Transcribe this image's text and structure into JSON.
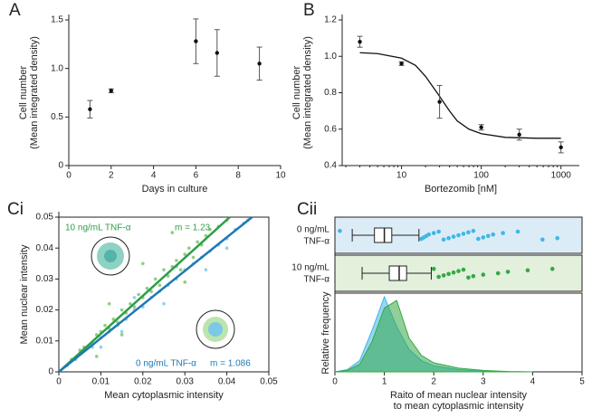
{
  "chart_data": [
    {
      "type": "errorbar",
      "panel": "A",
      "xlabel": "Days in culture",
      "ylabel": [
        "Cell number",
        "(Mean integrated density)"
      ],
      "x": [
        1,
        2,
        6,
        7,
        9
      ],
      "values": [
        0.58,
        0.77,
        1.28,
        1.16,
        1.05
      ],
      "errors": [
        0.09,
        0.02,
        0.23,
        0.24,
        0.17
      ],
      "color": "#111111",
      "xlim": [
        0,
        10
      ],
      "xticks": [
        0,
        2,
        4,
        6,
        8,
        10
      ],
      "ylim": [
        0,
        1.5
      ],
      "yticks": [
        0,
        0.5,
        {
          "value": 1,
          "label": "1.0"
        },
        1.5
      ]
    },
    {
      "type": "errorbar",
      "panel": "B",
      "xlabel": "Bortezomib [nM]",
      "ylabel": [
        "Cell number",
        "(Mean integrated density)"
      ],
      "log_x": true,
      "x": [
        3,
        10,
        30,
        100,
        300,
        1000
      ],
      "values": [
        1.08,
        0.96,
        0.75,
        0.61,
        0.57,
        0.5
      ],
      "errors": [
        0.03,
        0.01,
        0.09,
        0.015,
        0.03,
        0.03
      ],
      "color": "#111111",
      "fit": {
        "x": [
          3,
          5,
          10,
          15,
          20,
          25,
          30,
          40,
          50,
          70,
          100,
          200,
          500,
          1000
        ],
        "values": [
          1.02,
          1.015,
          0.99,
          0.95,
          0.89,
          0.83,
          0.78,
          0.7,
          0.645,
          0.6,
          0.575,
          0.555,
          0.55,
          0.55
        ]
      },
      "xlim": [
        1.8,
        1700
      ],
      "xticks": [
        10,
        100,
        1000
      ],
      "ylim": [
        0.4,
        1.2
      ],
      "yticks": [
        0.4,
        0.6,
        0.8,
        {
          "value": 1,
          "label": "1.0"
        },
        1.2
      ]
    },
    {
      "type": "scatter",
      "panel": "Ci",
      "xlabel": "Mean cytoplasmic intensity",
      "ylabel": [
        "Mean nuclear intensity"
      ],
      "series": [
        {
          "name": "10 ng/mL TNF-α",
          "slope_label": "m = 1.23",
          "color": "#2e9e48",
          "point_color": "#7cc46a",
          "x": [
            0.003,
            0.005,
            0.006,
            0.008,
            0.009,
            0.01,
            0.011,
            0.012,
            0.013,
            0.014,
            0.015,
            0.016,
            0.017,
            0.018,
            0.019,
            0.02,
            0.021,
            0.022,
            0.023,
            0.024,
            0.025,
            0.026,
            0.027,
            0.028,
            0.029,
            0.03,
            0.031,
            0.032,
            0.033,
            0.034,
            0.035,
            0.036,
            0.038,
            0.04,
            0.012,
            0.02,
            0.027,
            0.009,
            0.015,
            0.03
          ],
          "values": [
            0.004,
            0.007,
            0.008,
            0.009,
            0.012,
            0.013,
            0.015,
            0.014,
            0.017,
            0.016,
            0.02,
            0.019,
            0.022,
            0.021,
            0.025,
            0.024,
            0.027,
            0.026,
            0.03,
            0.028,
            0.033,
            0.031,
            0.034,
            0.036,
            0.033,
            0.038,
            0.04,
            0.037,
            0.042,
            0.041,
            0.044,
            0.046,
            0.047,
            0.049,
            0.022,
            0.035,
            0.045,
            0.005,
            0.012,
            0.029
          ],
          "fit": {
            "x": [
              0,
              0.0407
            ],
            "values": [
              0,
              0.05
            ]
          }
        },
        {
          "name": "0 ng/mL TNF-α",
          "slope_label": "m = 1.086",
          "color": "#1f78b4",
          "point_color": "#7cc8e6",
          "x": [
            0.002,
            0.004,
            0.006,
            0.008,
            0.01,
            0.012,
            0.014,
            0.016,
            0.018,
            0.02,
            0.022,
            0.024,
            0.026,
            0.028,
            0.03,
            0.032,
            0.034,
            0.036,
            0.038,
            0.04,
            0.042,
            0.044,
            0.015,
            0.025,
            0.035,
            0.018,
            0.028,
            0.04,
            0.045,
            0.01
          ],
          "values": [
            0.002,
            0.004,
            0.007,
            0.008,
            0.011,
            0.013,
            0.015,
            0.017,
            0.02,
            0.021,
            0.024,
            0.026,
            0.028,
            0.03,
            0.033,
            0.035,
            0.037,
            0.039,
            0.041,
            0.043,
            0.046,
            0.048,
            0.013,
            0.022,
            0.033,
            0.024,
            0.034,
            0.04,
            0.049,
            0.008
          ],
          "fit": {
            "x": [
              0,
              0.046
            ],
            "values": [
              0,
              0.05
            ]
          }
        }
      ],
      "xlim": [
        0,
        0.05
      ],
      "xticks": [
        0,
        0.01,
        0.02,
        0.03,
        0.04,
        0.05
      ],
      "ylim": [
        0,
        0.05
      ],
      "yticks": [
        0,
        0.01,
        0.02,
        0.03,
        0.04,
        0.05
      ]
    },
    {
      "type": "box",
      "panel": "Cii",
      "xlabel": [
        "Raito of mean nuclear intensity",
        "to mean cytoplasmic intensity"
      ],
      "ylabel": [
        "Relative frequency"
      ],
      "xlim": [
        0,
        5
      ],
      "xticks": [
        0,
        1,
        2,
        3,
        4,
        5
      ],
      "ylim": [
        0,
        1
      ],
      "density_x": [
        0,
        0.25,
        0.5,
        0.75,
        1,
        1.25,
        1.5,
        1.75,
        2,
        2.5,
        3,
        3.5,
        4
      ],
      "groups": [
        {
          "name_lines": [
            "0 ng/mL",
            "TNF-α"
          ],
          "color": "#3fb7e6",
          "band_color": "#dcecf6",
          "whisker_low": 0.35,
          "q1": 0.8,
          "median": 1.0,
          "q3": 1.15,
          "whisker_high": 1.7,
          "outliers": [
            0.1,
            1.75,
            1.8,
            1.85,
            1.9,
            2.0,
            2.1,
            2.2,
            2.3,
            2.4,
            2.5,
            2.6,
            2.7,
            2.8,
            2.9,
            3.0,
            3.1,
            3.2,
            3.4,
            3.7,
            4.2,
            4.5
          ],
          "density": [
            0,
            0.03,
            0.15,
            0.55,
            1.0,
            0.6,
            0.3,
            0.15,
            0.08,
            0.03,
            0.01,
            0.003,
            0
          ]
        },
        {
          "name_lines": [
            "10 ng/mL",
            "TNF-α"
          ],
          "color": "#35a845",
          "band_color": "#e2f0dc",
          "whisker_low": 0.55,
          "q1": 1.1,
          "median": 1.3,
          "q3": 1.45,
          "whisker_high": 1.95,
          "outliers": [
            2.0,
            2.1,
            2.2,
            2.3,
            2.4,
            2.5,
            2.6,
            2.7,
            2.8,
            3.0,
            3.3,
            3.5,
            3.9,
            4.4
          ],
          "density": [
            0,
            0.02,
            0.1,
            0.4,
            0.85,
            0.95,
            0.45,
            0.22,
            0.12,
            0.05,
            0.02,
            0.005,
            0
          ]
        }
      ]
    }
  ]
}
